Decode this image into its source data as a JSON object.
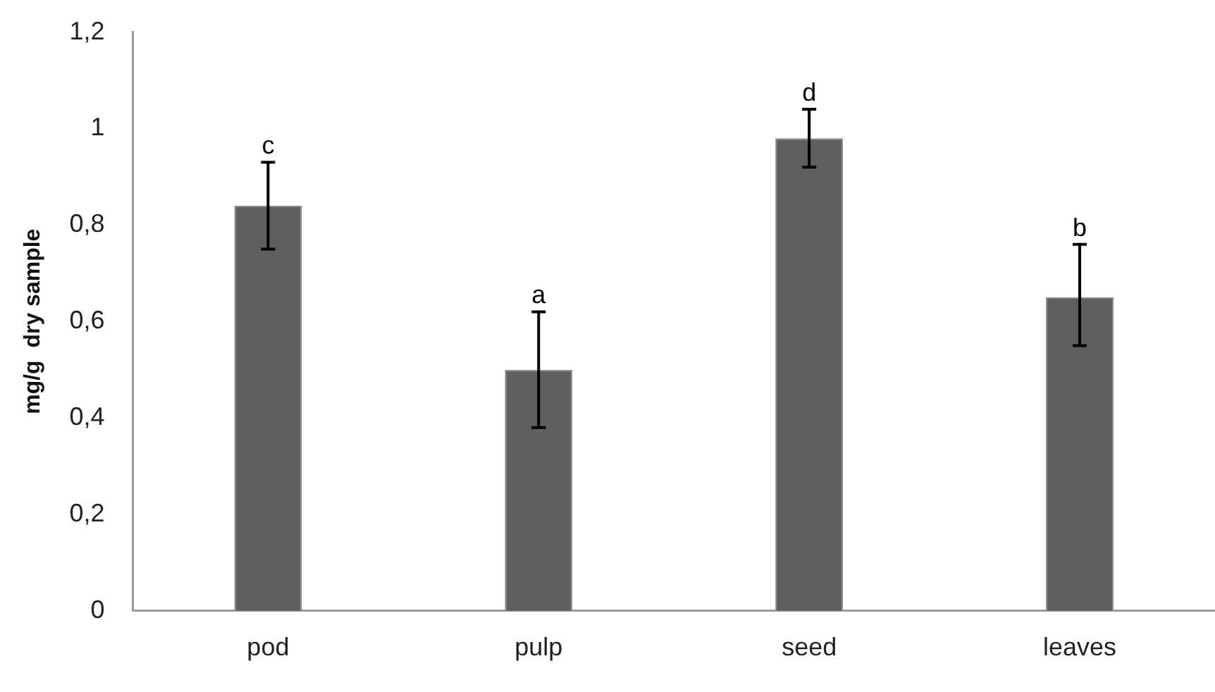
{
  "chart_data": {
    "type": "bar",
    "ylabel": "mg/g  dry sample",
    "categories": [
      "pod",
      "pulp",
      "seed",
      "leaves"
    ],
    "values": [
      0.84,
      0.5,
      0.98,
      0.65
    ],
    "errors": [
      0.09,
      0.12,
      0.06,
      [
        0.55,
        0.76
      ]
    ],
    "color": "#5f5f5f",
    "ylim": [
      0,
      1.2
    ],
    "yticks": [
      0,
      {
        "value": 0.2,
        "label": "0,2"
      },
      {
        "value": 0.4,
        "label": "0,4"
      },
      {
        "value": 0.6,
        "label": "0,6"
      },
      {
        "value": 0.8,
        "label": "0,8"
      },
      1,
      {
        "value": 1.2,
        "label": "1,2"
      }
    ],
    "grid": false,
    "legend": false,
    "annotations": [
      {
        "text": "c",
        "x": "pod",
        "y": 0.93
      },
      {
        "text": "a",
        "x": "pulp",
        "y": 0.62
      },
      {
        "text": "d",
        "x": "seed",
        "y": 1.04
      },
      {
        "text": "b",
        "x": "leaves",
        "y": 0.76
      }
    ]
  }
}
